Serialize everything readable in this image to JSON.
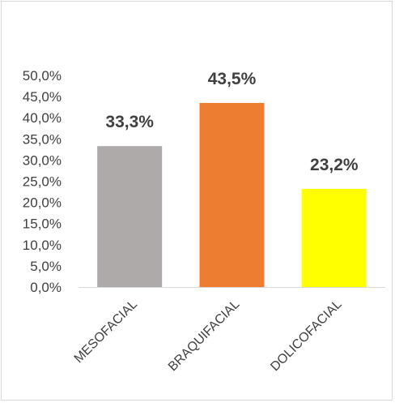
{
  "chart_data": {
    "type": "bar",
    "categories": [
      "MESOFACIAL",
      "BRAQUIFACIAL",
      "DOLICOFACIAL"
    ],
    "values": [
      33.3,
      43.5,
      23.2
    ],
    "data_labels": [
      "33,3%",
      "43,5%",
      "23,2%"
    ],
    "colors": [
      "#aeaaaa",
      "#ed7d31",
      "#ffff00"
    ],
    "title": "",
    "xlabel": "",
    "ylabel": "",
    "ylim": [
      0,
      50
    ],
    "y_ticks": [
      0,
      5,
      10,
      15,
      20,
      25,
      30,
      35,
      40,
      45,
      50
    ],
    "y_tick_labels": [
      "0,0%",
      "5,0%",
      "10,0%",
      "15,0%",
      "20,0%",
      "25,0%",
      "30,0%",
      "35,0%",
      "40,0%",
      "45,0%",
      "50,0%"
    ],
    "grid": false,
    "legend": "none"
  }
}
